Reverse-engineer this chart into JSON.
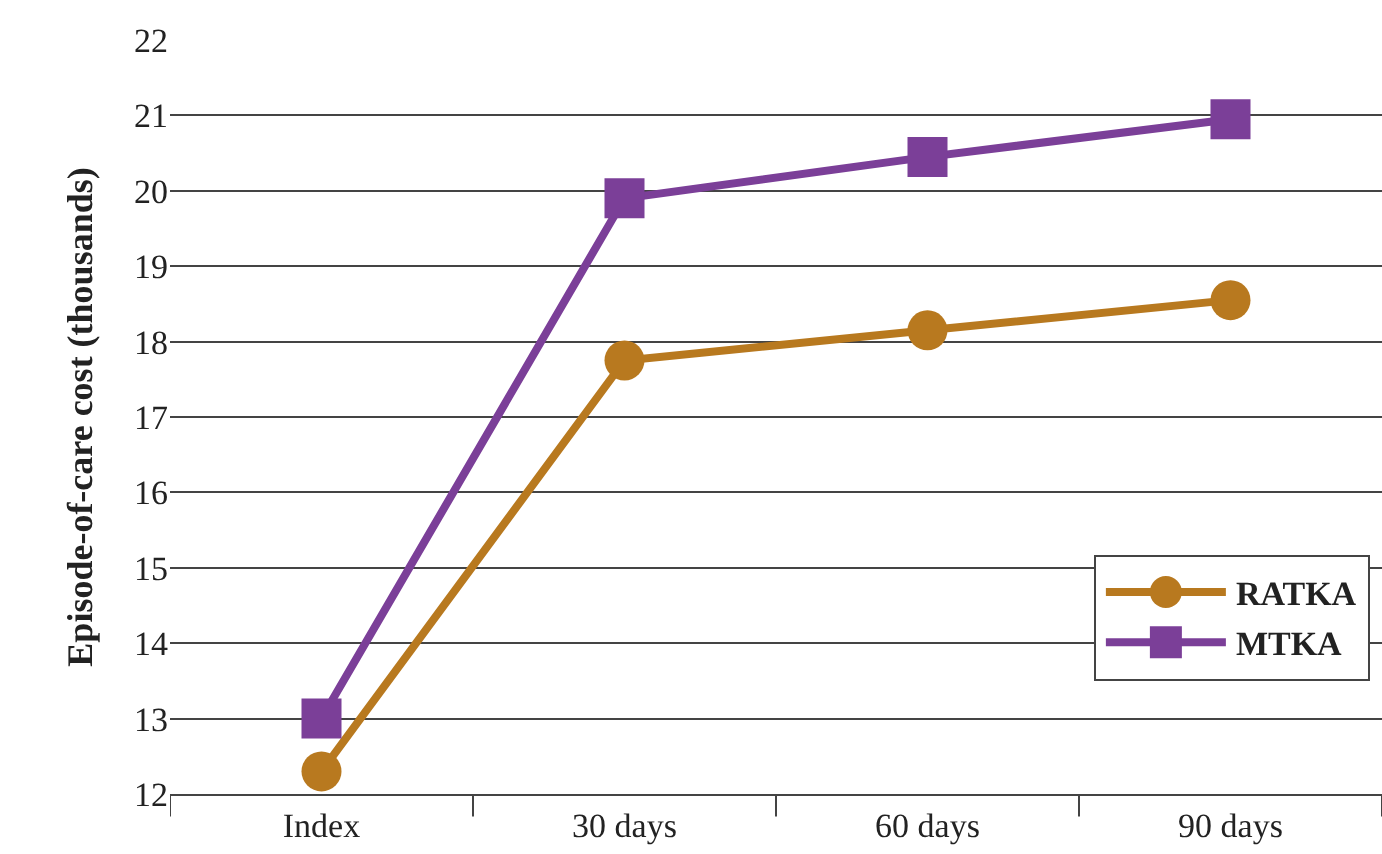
{
  "chart_data": {
    "type": "line",
    "ylabel": "Episode-of-care cost (thousands)",
    "categories": [
      "Index",
      "30 days",
      "60 days",
      "90 days"
    ],
    "series": [
      {
        "name": "RATKA",
        "color": "#b8791f",
        "values": [
          12.3,
          17.75,
          18.15,
          18.55
        ],
        "marker": "circle"
      },
      {
        "name": "MTKA",
        "color": "#7b3f98",
        "values": [
          13.0,
          19.9,
          20.45,
          20.95
        ],
        "marker": "square"
      }
    ],
    "ylim": [
      12,
      22
    ],
    "yticks": [
      12,
      13,
      14,
      15,
      16,
      17,
      18,
      19,
      20,
      21,
      22
    ],
    "grid": "y",
    "legend": "bottom right",
    "line_style": "solid"
  }
}
